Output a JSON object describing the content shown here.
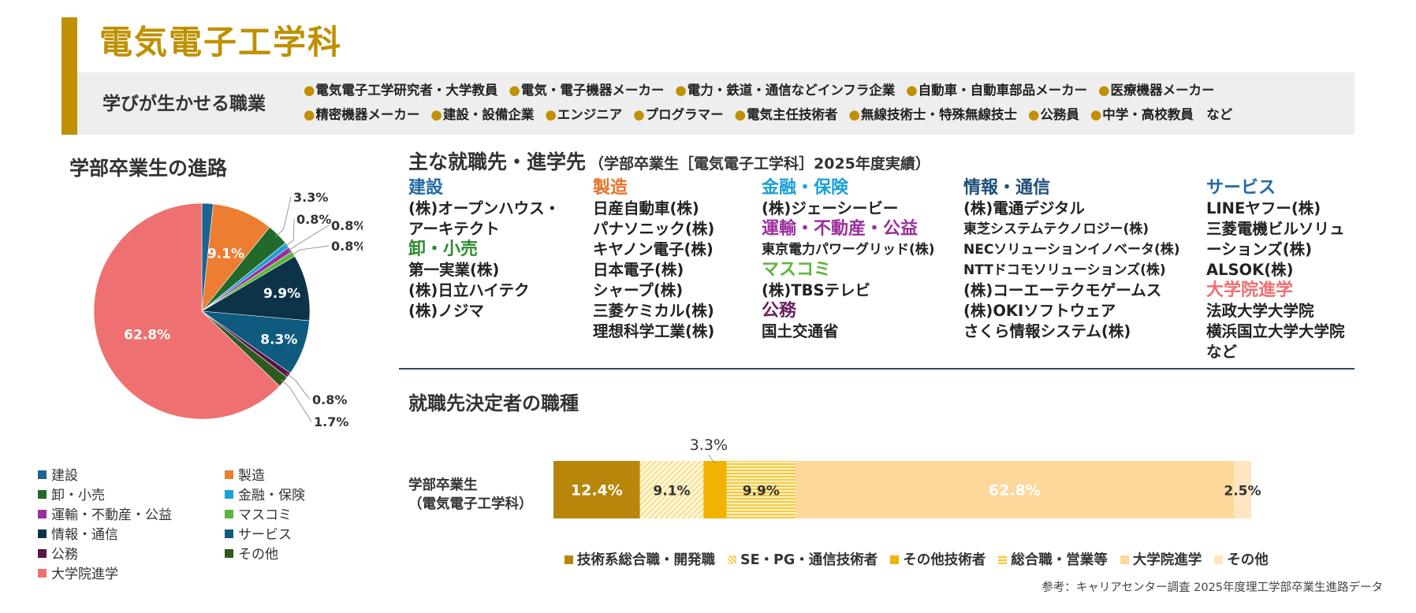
{
  "header": {
    "title": "電気電子工学科",
    "career_label": "学びが生かせる職業",
    "careers": [
      "電気電子工学研究者・大学教員",
      "電気・電子機器メーカー",
      "電力・鉄道・通信などインフラ企業",
      "自動車・自動車部品メーカー",
      "医療機器メーカー",
      "精密機器メーカー",
      "建設・設備企業",
      "エンジニア",
      "プログラマー",
      "電気主任技術者",
      "無線技術士・特殊無線技士",
      "公務員",
      "中学・高校教員　など"
    ],
    "bullet": "●"
  },
  "pie_section": {
    "title": "学部卒業生の進路"
  },
  "employers": {
    "title": "主な就職先・進学先",
    "subtitle": "（学部卒業生［電気電子工学科］2025年度実績）",
    "columns": [
      [
        {
          "category": "建設",
          "color": "#1f6aa5",
          "items": [
            "(株)オープンハウス・",
            "アーキテクト"
          ]
        },
        {
          "category": "卸・小売",
          "color": "#2e8b2e",
          "items": [
            "第一実業(株)",
            "(株)日立ハイテク",
            "(株)ノジマ"
          ]
        }
      ],
      [
        {
          "category": "製造",
          "color": "#e8712a",
          "items": [
            "日産自動車(株)",
            "パナソニック(株)",
            "キヤノン電子(株)",
            "日本電子(株)",
            "シャープ(株)",
            "三菱ケミカル(株)",
            "理想科学工業(株)"
          ]
        }
      ],
      [
        {
          "category": "金融・保険",
          "color": "#1aa0d8",
          "items": [
            "(株)ジェーシービー"
          ]
        },
        {
          "category": "運輸・不動産・公益",
          "color": "#9b2e9b",
          "items": [
            "東京電力パワーグリッド(株)"
          ],
          "small": true
        },
        {
          "category": "マスコミ",
          "color": "#5bb53a",
          "items": [
            "(株)TBSテレビ"
          ]
        },
        {
          "category": "公務",
          "color": "#6a1e5e",
          "items": [
            "国土交通省"
          ]
        }
      ],
      [
        {
          "category": "情報・通信",
          "color": "#1f4e79",
          "items": [
            "(株)電通デジタル",
            "東芝システムテクノロジー(株)",
            "NECソリューションイノベータ(株)",
            "NTTドコモソリューションズ(株)",
            "(株)コーエーテクモゲームス",
            "(株)OKIソフトウェア",
            "さくら情報システム(株)"
          ],
          "small_idx": [
            1,
            2,
            3
          ]
        }
      ],
      [
        {
          "category": "サービス",
          "color": "#1f6aa5",
          "items": [
            "LINEヤフー(株)",
            "三菱電機ビルソリュ",
            "ーションズ(株)",
            "ALSOK(株)"
          ]
        },
        {
          "category": "大学院進学",
          "color": "#ef6f6f",
          "items": [
            "法政大学大学院",
            "横浜国立大学大学院",
            "など"
          ]
        }
      ]
    ]
  },
  "job_types": {
    "title": "就職先決定者の職種",
    "row_label_1": "学部卒業生",
    "row_label_2": "（電気電子工学科）"
  },
  "source": "参考：キャリアセンター調査 2025年度理工学部卒業生進路データ",
  "chart_data": [
    {
      "type": "pie",
      "title": "学部卒業生の進路",
      "start_angle_deg": 0,
      "direction": "clockwise",
      "slices": [
        {
          "label": "建設",
          "value": 1.7,
          "color": "#1f6391",
          "value_label": "1.7%"
        },
        {
          "label": "製造",
          "value": 9.1,
          "color": "#ed7d31",
          "value_label": "9.1%"
        },
        {
          "label": "卸・小売",
          "value": 3.3,
          "color": "#23692b",
          "value_label": "3.3%"
        },
        {
          "label": "金融・保険",
          "value": 0.8,
          "color": "#1aa0d8",
          "value_label": "0.8%"
        },
        {
          "label": "運輸・不動産・公益",
          "value": 0.8,
          "color": "#9b2e9b",
          "value_label": "0.8%"
        },
        {
          "label": "マスコミ",
          "value": 0.8,
          "color": "#5bb53a",
          "value_label": "0.8%"
        },
        {
          "label": "情報・通信",
          "value": 9.9,
          "color": "#0d3349",
          "value_label": "9.9%"
        },
        {
          "label": "サービス",
          "value": 8.3,
          "color": "#0f5a7f",
          "value_label": "8.3%"
        },
        {
          "label": "公務",
          "value": 0.8,
          "color": "#5a1248",
          "value_label": "0.8%"
        },
        {
          "label": "その他",
          "value": 1.7,
          "color": "#2e5a20",
          "value_label": "1.7%"
        },
        {
          "label": "大学院進学",
          "value": 62.8,
          "color": "#ef7070",
          "value_label": "62.8%"
        }
      ]
    },
    {
      "type": "bar",
      "orientation": "horizontal-stacked",
      "title": "就職先決定者の職種",
      "categories": [
        "学部卒業生（電気電子工学科）"
      ],
      "xlim": [
        0,
        100
      ],
      "series": [
        {
          "name": "技術系総合職・開発職",
          "values": [
            12.4
          ],
          "color": "#b8860b",
          "pattern": "solid",
          "label": "12.4%",
          "label_color": "#ffffff"
        },
        {
          "name": "SE・PG・通信技術者",
          "values": [
            9.1
          ],
          "color": "#f2cc5a",
          "pattern": "diag",
          "label": "9.1%",
          "label_color": "#333333"
        },
        {
          "name": "その他技術者",
          "values": [
            3.3
          ],
          "color": "#f0b400",
          "pattern": "solid",
          "label": "3.3%",
          "label_color": "#333333",
          "label_outside": true
        },
        {
          "name": "総合職・営業等",
          "values": [
            9.9
          ],
          "color": "#f5c842",
          "pattern": "hlines",
          "label": "9.9%",
          "label_color": "#333333"
        },
        {
          "name": "大学院進学",
          "values": [
            62.8
          ],
          "color": "#fdd89a",
          "pattern": "solid",
          "label": "62.8%",
          "label_color": "#ffffff"
        },
        {
          "name": "その他",
          "values": [
            2.5
          ],
          "color": "#fde6c0",
          "pattern": "solid",
          "label": "2.5%",
          "label_color": "#333333"
        }
      ]
    }
  ]
}
